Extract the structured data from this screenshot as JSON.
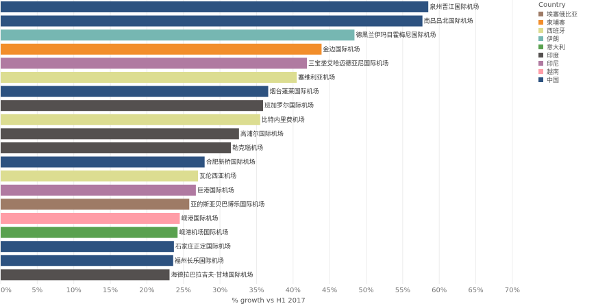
{
  "chart_data": {
    "type": "bar",
    "orientation": "horizontal",
    "xlabel": "% growth vs H1 2017",
    "xlim": [
      0,
      70
    ],
    "grid": true,
    "xticks": [
      "0%",
      "5%",
      "10%",
      "15%",
      "20%",
      "25%",
      "30%",
      "35%",
      "40%",
      "45%",
      "50%",
      "55%",
      "60%",
      "65%",
      "70%"
    ],
    "legend": {
      "title": "Country",
      "position": "top-right",
      "items": [
        {
          "label": "埃塞俄比亚",
          "color": "#9e7b66"
        },
        {
          "label": "柬埔寨",
          "color": "#f28e2b"
        },
        {
          "label": "西班牙",
          "color": "#dcdd91"
        },
        {
          "label": "伊朗",
          "color": "#76b7b2"
        },
        {
          "label": "意大利",
          "color": "#59a14f"
        },
        {
          "label": "印度",
          "color": "#54504f"
        },
        {
          "label": "印尼",
          "color": "#b07aa1"
        },
        {
          "label": "越南",
          "color": "#ff9da7"
        },
        {
          "label": "中国",
          "color": "#2d5280"
        }
      ]
    },
    "bars": [
      {
        "label": "泉州晋江国际机场",
        "value": 58.5,
        "country": "中国"
      },
      {
        "label": "南昌昌北国际机场",
        "value": 57.7,
        "country": "中国"
      },
      {
        "label": "德黑兰伊玛目霍梅尼国际机场",
        "value": 48.4,
        "country": "伊朗"
      },
      {
        "label": "金边国际机场",
        "value": 43.9,
        "country": "柬埔寨"
      },
      {
        "label": "三宝垄艾哈迈德亚尼国际机场",
        "value": 41.9,
        "country": "印尼"
      },
      {
        "label": "塞维利亚机场",
        "value": 40.5,
        "country": "西班牙"
      },
      {
        "label": "烟台蓬莱国际机场",
        "value": 36.6,
        "country": "中国"
      },
      {
        "label": "班加罗尔国际机场",
        "value": 35.9,
        "country": "印度"
      },
      {
        "label": "比特内里费机场",
        "value": 35.5,
        "country": "西班牙"
      },
      {
        "label": "高浦尔国际机场",
        "value": 32.6,
        "country": "印度"
      },
      {
        "label": "勒克瑙机场",
        "value": 31.5,
        "country": "印度"
      },
      {
        "label": "合肥新桥国际机场",
        "value": 27.9,
        "country": "中国"
      },
      {
        "label": "瓦伦西亚机场",
        "value": 27.0,
        "country": "西班牙"
      },
      {
        "label": "巨港国际机场",
        "value": 26.7,
        "country": "印尼"
      },
      {
        "label": "亚的斯亚贝巴博乐国际机场",
        "value": 25.8,
        "country": "埃塞俄比亚"
      },
      {
        "label": "岘港国际机场",
        "value": 24.5,
        "country": "越南"
      },
      {
        "label": "岘港机场国际机场",
        "value": 24.2,
        "country": "意大利"
      },
      {
        "label": "石家庄正定国际机场",
        "value": 23.7,
        "country": "中国"
      },
      {
        "label": "福州长乐国际机场",
        "value": 23.6,
        "country": "中国"
      },
      {
        "label": "海德拉巴拉吉夫·甘地国际机场",
        "value": 23.1,
        "country": "印度"
      }
    ]
  }
}
